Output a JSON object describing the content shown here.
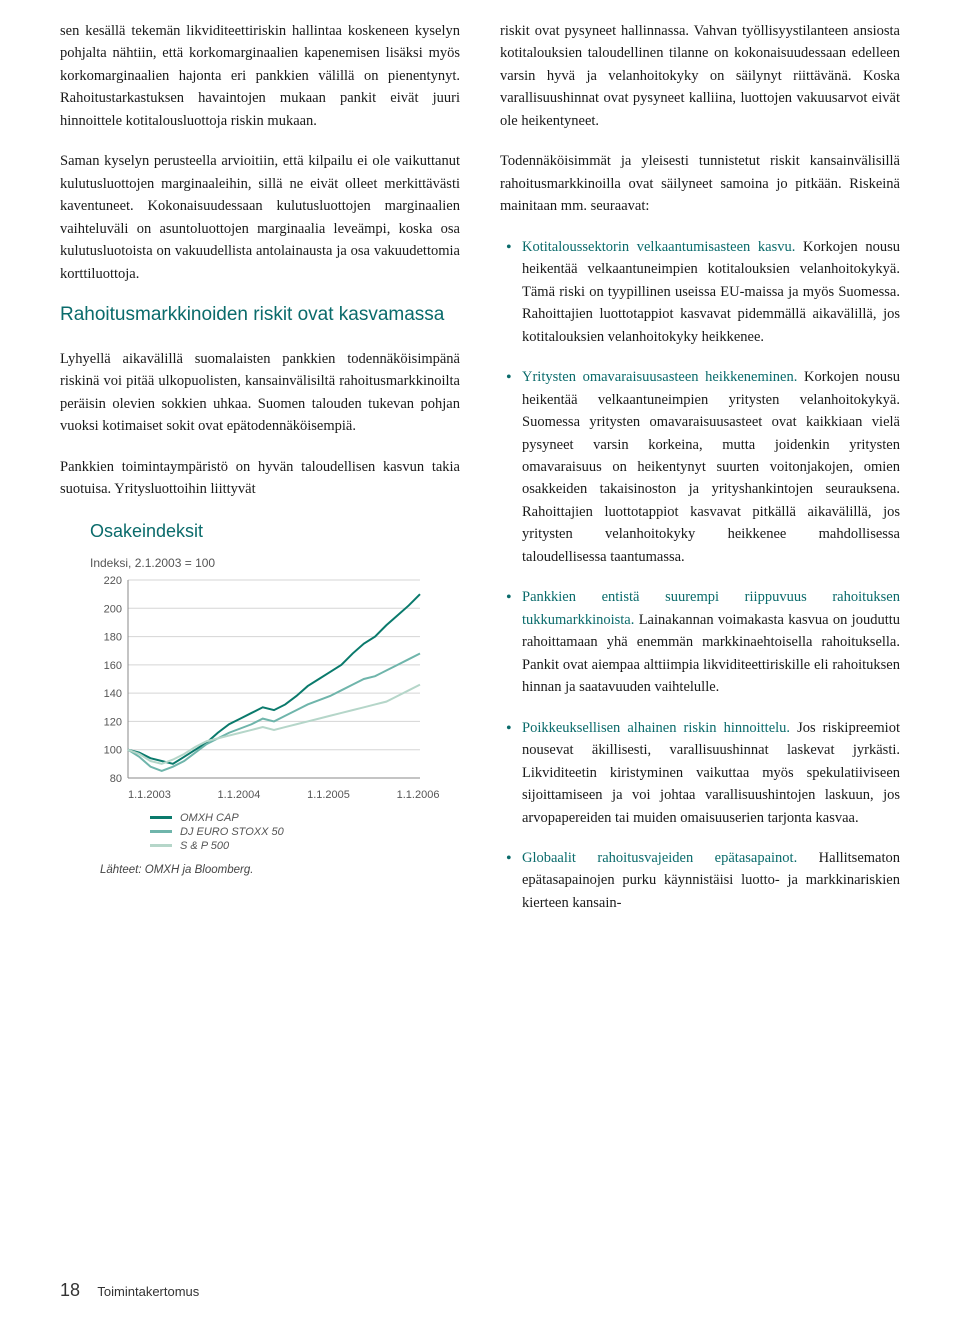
{
  "left": {
    "p1": "sen kesällä tekemän likviditeettiriskin hallintaa koskeneen kyselyn pohjalta nähtiin, että korkomarginaalien kapenemisen lisäksi myös korkomarginaalien hajonta eri pankkien välillä on pienentynyt. Rahoitustarkastuksen havaintojen mukaan pankit eivät juuri hinnoittele kotitalousluottoja riskin mukaan.",
    "p2": "Saman kyselyn perusteella arvioitiin, että kilpailu ei ole vaikuttanut kulutusluottojen marginaaleihin, sillä ne eivät olleet merkittävästi kaventuneet. Kokonaisuudessaan kulutusluottojen marginaalien vaihteluväli on asuntoluottojen marginaalia leveämpi, koska osa kulutusluotoista on vakuudellista antolainausta ja osa vakuudettomia korttiluottoja.",
    "heading": "Rahoitusmarkkinoiden riskit ovat kasvamassa",
    "p3": "Lyhyellä aikavälillä suomalaisten pankkien todennäköisimpänä riskinä voi pitää ulkopuolisten, kansainvälisiltä rahoitusmarkkinoilta peräisin olevien sokkien uhkaa. Suomen talouden tukevan pohjan vuoksi kotimaiset sokit ovat epätodennäköisempiä.",
    "p4": "Pankkien toimintaympäristö on hyvän taloudellisen kasvun takia suotuisa. Yritysluottoihin liittyvät"
  },
  "right": {
    "p1": "riskit ovat pysyneet hallinnassa. Vahvan työllisyystilanteen ansiosta kotitalouksien taloudellinen tilanne on kokonaisuudessaan edelleen varsin hyvä ja velanhoitokyky on säilynyt riittävänä. Koska varallisuushinnat ovat pysyneet kalliina, luottojen vakuusarvot eivät ole heikentyneet.",
    "p2": "Todennäköisimmät ja yleisesti tunnistetut riskit kansainvälisillä rahoitusmarkkinoilla ovat säilyneet samoina jo pitkään. Riskeinä mainitaan mm. seuraavat:",
    "bullets": [
      {
        "title": "Kotitaloussektorin velkaantumisasteen kasvu.",
        "body": " Korkojen nousu heikentää velkaantuneimpien kotitalouksien velanhoitokykyä. Tämä riski on tyypillinen useissa EU-maissa ja myös Suomessa. Rahoittajien luottotappiot kasvavat pidemmällä aikavälillä, jos kotitalouksien velanhoitokyky heikkenee."
      },
      {
        "title": "Yritysten omavaraisuusasteen heikkeneminen.",
        "body": " Korkojen nousu heikentää velkaantuneimpien yritysten velanhoitokykyä. Suomessa yritysten omavaraisuusasteet ovat kaikkiaan vielä pysyneet varsin korkeina, mutta joidenkin yritysten omavaraisuus on heikentynyt suurten voitonjakojen, omien osakkeiden takaisinoston ja yrityshankintojen seurauksena. Rahoittajien luottotappiot kasvavat pitkällä aikavälillä, jos yritysten velanhoitokyky heikkenee mahdollisessa taloudellisessa taantumassa."
      },
      {
        "title": "Pankkien entistä suurempi riippuvuus rahoituksen tukkumarkkinoista.",
        "body": " Lainakannan voimakasta kasvua on jouduttu rahoittamaan yhä enemmän markkinaehtoisella rahoituksella. Pankit ovat aiempaa alttiimpia likviditeettiriskille eli rahoituksen hinnan ja saatavuuden vaihtelulle."
      },
      {
        "title": "Poikkeuksellisen alhainen riskin hinnoittelu.",
        "body": " Jos riskipreemiot nousevat äkillisesti, varallisuushinnat laskevat jyrkästi. Likviditeetin kiristyminen vaikuttaa myös spekulatiiviseen sijoittamiseen ja voi johtaa varallisuushintojen laskuun, jos arvopapereiden tai muiden omaisuuserien tarjonta kasvaa."
      },
      {
        "title": "Globaalit rahoitusvajeiden epätasapainot.",
        "body": " Hallitsematon epätasapainojen purku käynnistäisi luotto- ja markkinariskien kierteen kansain-"
      }
    ]
  },
  "chart": {
    "title": "Osakeindeksit",
    "subtitle": "Indeksi, 2.1.2003 = 100",
    "ylim": [
      80,
      220
    ],
    "ytick_step": 20,
    "yticks": [
      80,
      100,
      120,
      140,
      160,
      180,
      200,
      220
    ],
    "xticks": [
      "1.1.2003",
      "1.1.2004",
      "1.1.2005",
      "1.1.2006"
    ],
    "series": [
      {
        "name": "OMXH CAP",
        "color": "#0a7a6c",
        "values": [
          100,
          98,
          94,
          92,
          90,
          95,
          100,
          105,
          112,
          118,
          122,
          126,
          130,
          128,
          132,
          138,
          145,
          150,
          155,
          160,
          168,
          175,
          180,
          188,
          195,
          202,
          210
        ]
      },
      {
        "name": "DJ EURO STOXX 50",
        "color": "#6fb5ab",
        "values": [
          100,
          95,
          88,
          85,
          88,
          92,
          98,
          104,
          108,
          112,
          115,
          118,
          122,
          120,
          124,
          128,
          132,
          135,
          138,
          142,
          146,
          150,
          152,
          156,
          160,
          164,
          168
        ]
      },
      {
        "name": "S & P 500",
        "color": "#b5d6c9",
        "values": [
          100,
          97,
          92,
          90,
          93,
          97,
          102,
          106,
          108,
          110,
          112,
          114,
          116,
          114,
          116,
          118,
          120,
          122,
          124,
          126,
          128,
          130,
          132,
          134,
          138,
          142,
          146
        ]
      }
    ],
    "grid_color": "#d5d5d5",
    "axis_color": "#888888",
    "label_color": "#555555",
    "label_fontsize": 11,
    "title_fontsize": 18,
    "background": "#ffffff",
    "source": "Lähteet: OMXH ja Bloomberg."
  },
  "footer": {
    "page": "18",
    "label": "Toimintakertomus"
  }
}
